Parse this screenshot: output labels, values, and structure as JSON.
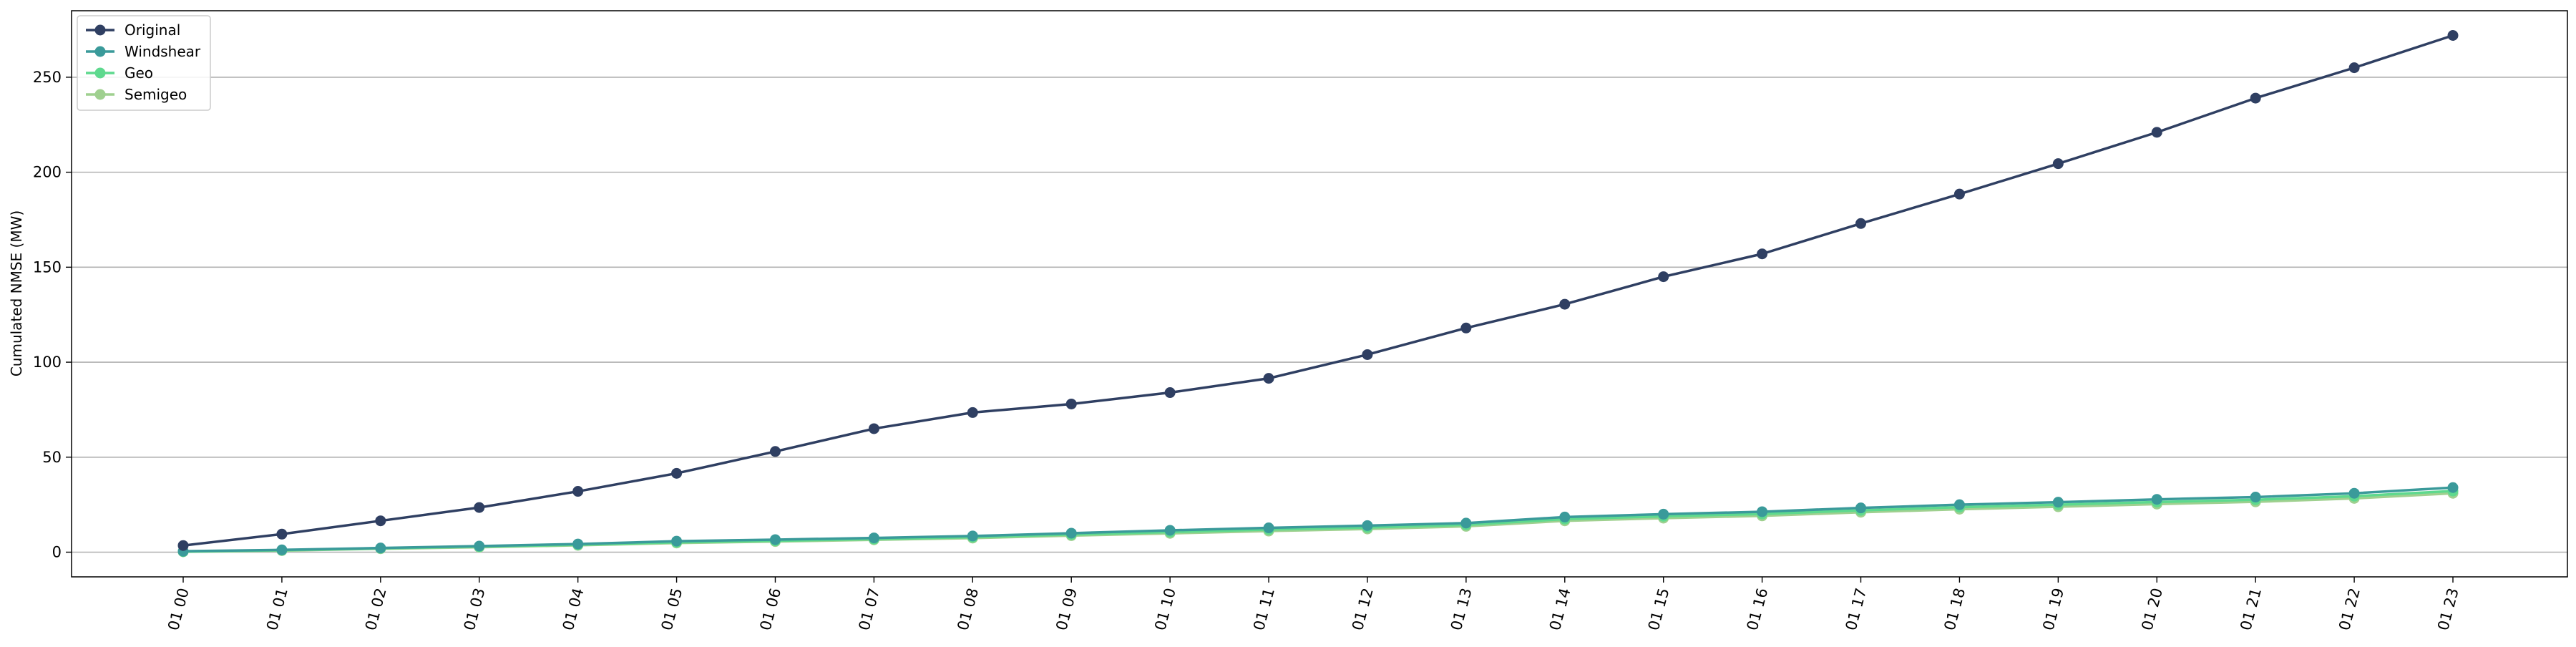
{
  "chart_data": {
    "type": "line",
    "title": "",
    "xlabel": "",
    "ylabel": "Cumulated NMSE (MW)",
    "categories": [
      "01 00",
      "01 01",
      "01 02",
      "01 03",
      "01 04",
      "01 05",
      "01 06",
      "01 07",
      "01 08",
      "01 09",
      "01 10",
      "01 11",
      "01 12",
      "01 13",
      "01 14",
      "01 15",
      "01 16",
      "01 17",
      "01 18",
      "01 19",
      "01 20",
      "01 21",
      "01 22",
      "01 23"
    ],
    "ylim": [
      -13,
      285
    ],
    "yticks": [
      0,
      50,
      100,
      150,
      200,
      250
    ],
    "grid": "horizontal",
    "legend_position": "top-left",
    "series": [
      {
        "name": "Original",
        "color": "#2f3f62",
        "values": [
          3.5,
          9.5,
          16.5,
          23.5,
          32,
          41.5,
          53,
          65,
          73.5,
          78,
          84,
          91.5,
          104,
          118,
          130.5,
          145,
          157,
          173,
          188.5,
          204.5,
          221,
          239,
          255,
          272
        ]
      },
      {
        "name": "Windshear",
        "color": "#3a9a9a",
        "values": [
          0.5,
          1.2,
          2.2,
          3.2,
          4.3,
          5.8,
          6.6,
          7.5,
          8.5,
          10.0,
          11.5,
          12.8,
          14.0,
          15.3,
          18.5,
          20.0,
          21.3,
          23.3,
          25.0,
          26.3,
          27.8,
          29.0,
          31.0,
          34.0
        ]
      },
      {
        "name": "Geo",
        "color": "#5ed98e",
        "values": [
          0.3,
          1.0,
          2.0,
          2.9,
          3.9,
          5.2,
          6.0,
          6.9,
          7.9,
          9.3,
          10.6,
          11.9,
          13.0,
          14.4,
          17.4,
          18.9,
          20.1,
          22.0,
          23.7,
          25.0,
          26.4,
          27.6,
          29.5,
          32.2
        ]
      },
      {
        "name": "Semigeo",
        "color": "#9fd08f",
        "values": [
          0.2,
          0.8,
          1.8,
          2.6,
          3.6,
          4.8,
          5.6,
          6.5,
          7.4,
          8.7,
          9.9,
          11.1,
          12.2,
          13.6,
          16.5,
          17.9,
          19.1,
          21.0,
          22.6,
          23.9,
          25.3,
          26.5,
          28.3,
          31.0
        ]
      }
    ]
  }
}
